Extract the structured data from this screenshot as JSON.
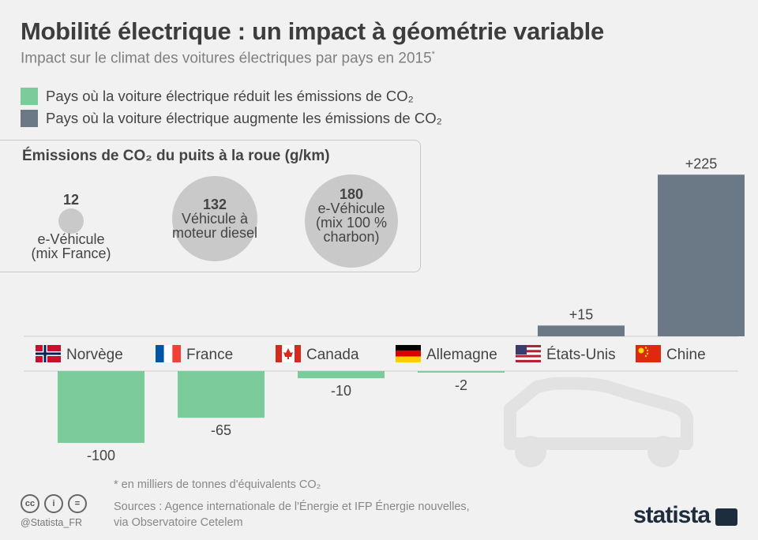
{
  "title": "Mobilité électrique : un impact à géométrie variable",
  "subtitle": "Impact sur le climat des voitures électriques par pays en 2015",
  "subtitle_mark": "*",
  "legend": {
    "reduces": "Pays où la voiture électrique réduit les émissions de CO₂",
    "increases": "Pays où la voiture électrique augmente les émissions de CO₂"
  },
  "colors": {
    "reduces": "#7ccb9b",
    "increases": "#6b7986",
    "circle": "#c9c9c9",
    "axis": "#cfcfcf"
  },
  "inset": {
    "title": "Émissions de CO₂ du puits à la roue (g/km)",
    "items": [
      {
        "value": "12",
        "line1": "e-Véhicule",
        "line2": "(mix France)",
        "line3": ""
      },
      {
        "value": "132",
        "line1": "Véhicule à",
        "line2": "moteur diesel",
        "line3": ""
      },
      {
        "value": "180",
        "line1": "e-Véhicule",
        "line2": "(mix 100 %",
        "line3": "charbon)"
      }
    ]
  },
  "chart_data": {
    "type": "bar",
    "categories": [
      "Norvège",
      "France",
      "Canada",
      "Allemagne",
      "États-Unis",
      "Chine"
    ],
    "values": [
      -100,
      -65,
      -10,
      -2,
      15,
      225
    ],
    "labels": [
      "-100",
      "-65",
      "-10",
      "-2",
      "+15",
      "+225"
    ],
    "flags": [
      "norway",
      "france",
      "canada",
      "germany",
      "usa",
      "china"
    ],
    "title": "Impact sur le climat des voitures électriques par pays en 2015",
    "ylabel": "",
    "unit_note": "* en milliers de tonnes d'équivalents CO₂"
  },
  "footnote": "* en milliers de tonnes d'équivalents CO₂",
  "sources": {
    "line1": "Sources : Agence internationale de l'Énergie et IFP Énergie nouvelles,",
    "line2": "via Observatoire Cetelem"
  },
  "handle": "@Statista_FR",
  "brand": "statista",
  "cc_icons": [
    "cc-icon",
    "attribution-icon",
    "no-derivatives-icon"
  ]
}
